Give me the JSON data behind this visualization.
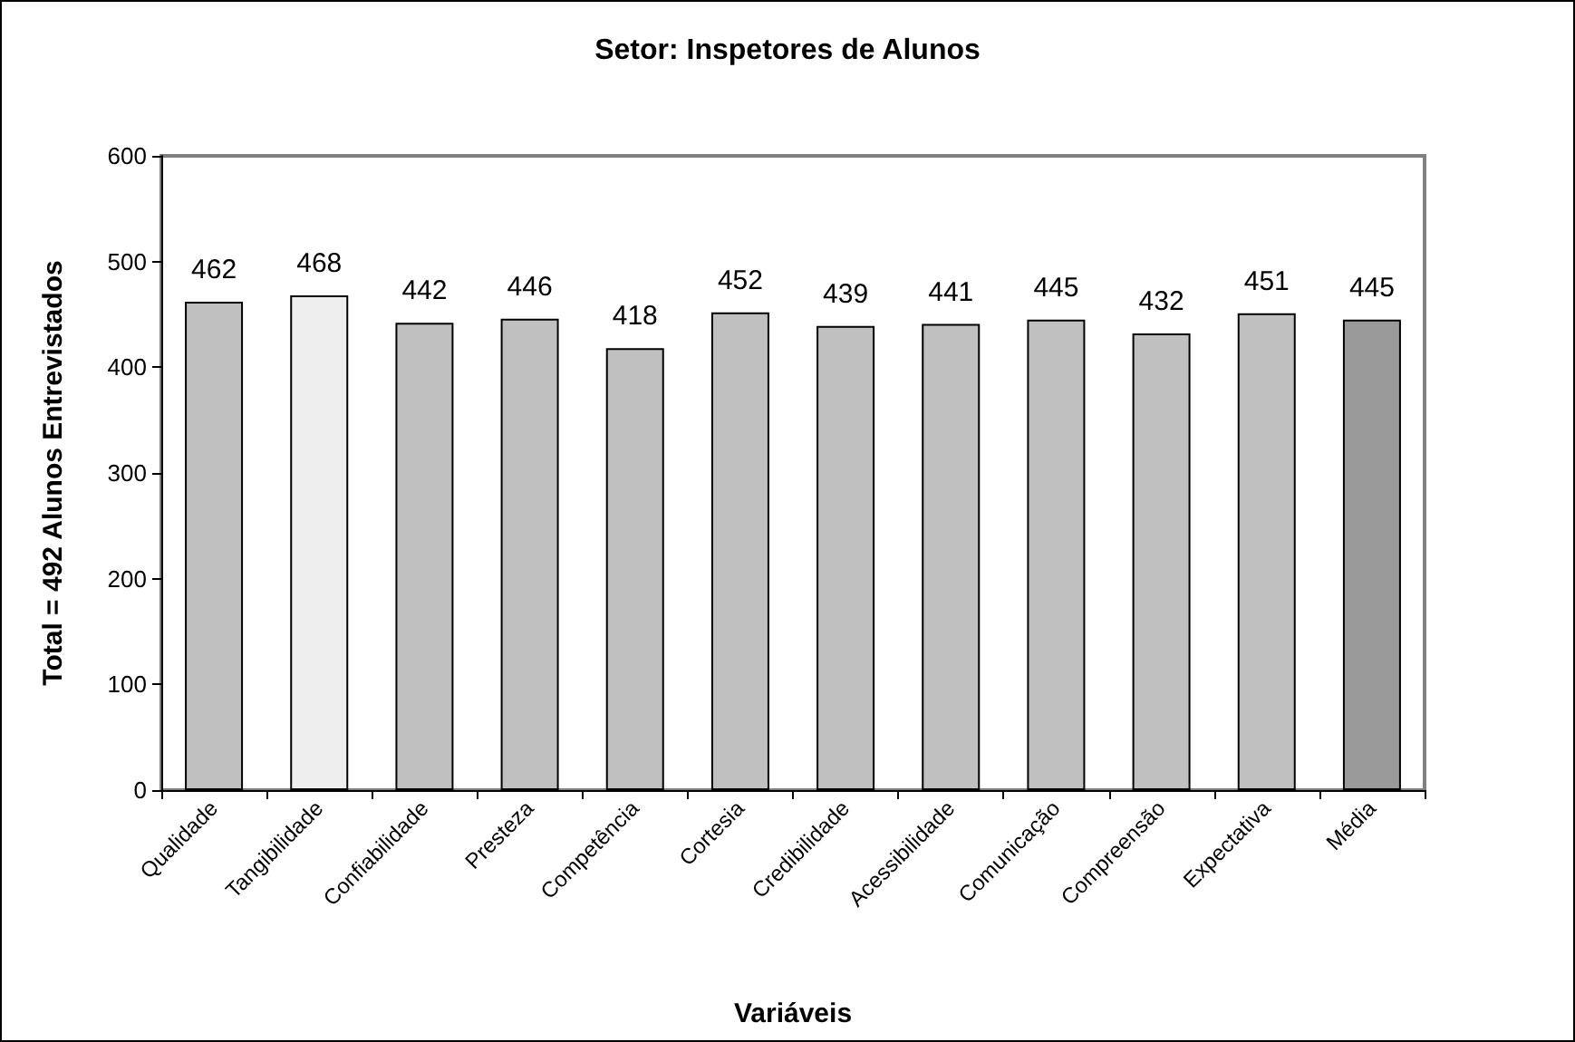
{
  "chart_data": {
    "type": "bar",
    "title": "Setor: Inspetores de Alunos",
    "xlabel": "Variáveis",
    "ylabel": "Total = 492 Alunos Entrevistados",
    "categories": [
      "Qualidade",
      "Tangibilidade",
      "Confiabilidade",
      "Presteza",
      "Competência",
      "Cortesia",
      "Credibilidade",
      "Acessibilidade",
      "Comunicação",
      "Compreensão",
      "Expectativa",
      "Média"
    ],
    "values": [
      462,
      468,
      442,
      446,
      418,
      452,
      439,
      441,
      445,
      432,
      451,
      445
    ],
    "colors": [
      "#c0c0c0",
      "#eeeeee",
      "#c0c0c0",
      "#c0c0c0",
      "#c0c0c0",
      "#c0c0c0",
      "#c0c0c0",
      "#c0c0c0",
      "#c0c0c0",
      "#c0c0c0",
      "#c0c0c0",
      "#9a9a9a"
    ],
    "ylim": [
      0,
      600
    ],
    "yticks": [
      0,
      100,
      200,
      300,
      400,
      500,
      600
    ],
    "data_labels": true
  }
}
